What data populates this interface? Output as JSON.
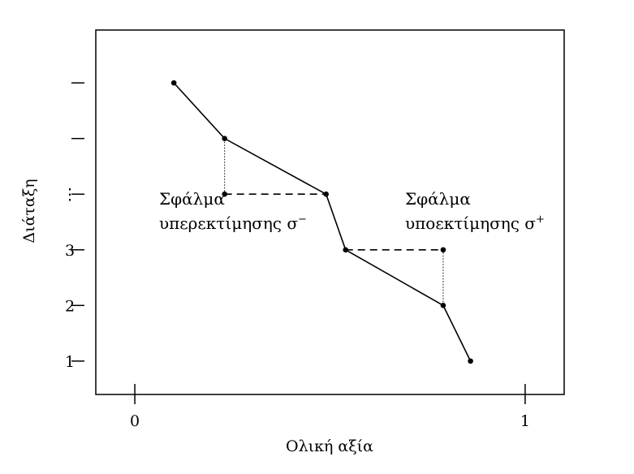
{
  "chart_data": {
    "type": "line",
    "xlabel": "Ολική αξία",
    "ylabel": "Διάταξη",
    "xlim": [
      -0.1,
      1.1
    ],
    "ylim": [
      6.95,
      0.4
    ],
    "x_ticks": [
      {
        "value": 0,
        "label": "0"
      },
      {
        "value": 1,
        "label": "1"
      }
    ],
    "y_ticks": [
      {
        "value": 1,
        "label": "1"
      },
      {
        "value": 2,
        "label": "2"
      },
      {
        "value": 3,
        "label": "3"
      },
      {
        "value": 4,
        "label": "⋮"
      },
      {
        "value": 5,
        "label": ""
      },
      {
        "value": 6,
        "label": ""
      }
    ],
    "series": [
      {
        "x": [
          0.1,
          0.23,
          0.49,
          0.54,
          0.79,
          0.86
        ],
        "y": [
          6.0,
          5.0,
          4.0,
          3.0,
          2.0,
          1.0
        ]
      }
    ],
    "error_markers": [
      {
        "kind": "under",
        "dashed_from_x": 0.23,
        "dashed_to_x": 0.49,
        "y": 4.0,
        "dotted_x": 0.23,
        "dotted_from_y": 4.0,
        "dotted_to_y": 5.0,
        "label_line1": "Σφάλμα",
        "label_line2": "υπερεκτίμησης σ",
        "label_sup": "−"
      },
      {
        "kind": "over",
        "dashed_from_x": 0.54,
        "dashed_to_x": 0.79,
        "y": 3.0,
        "dotted_x": 0.79,
        "dotted_from_y": 3.0,
        "dotted_to_y": 2.0,
        "label_line1": "Σφάλμα",
        "label_line2": "υποεκτίμησης σ",
        "label_sup": "+"
      }
    ],
    "grid": false,
    "legend": "none"
  }
}
